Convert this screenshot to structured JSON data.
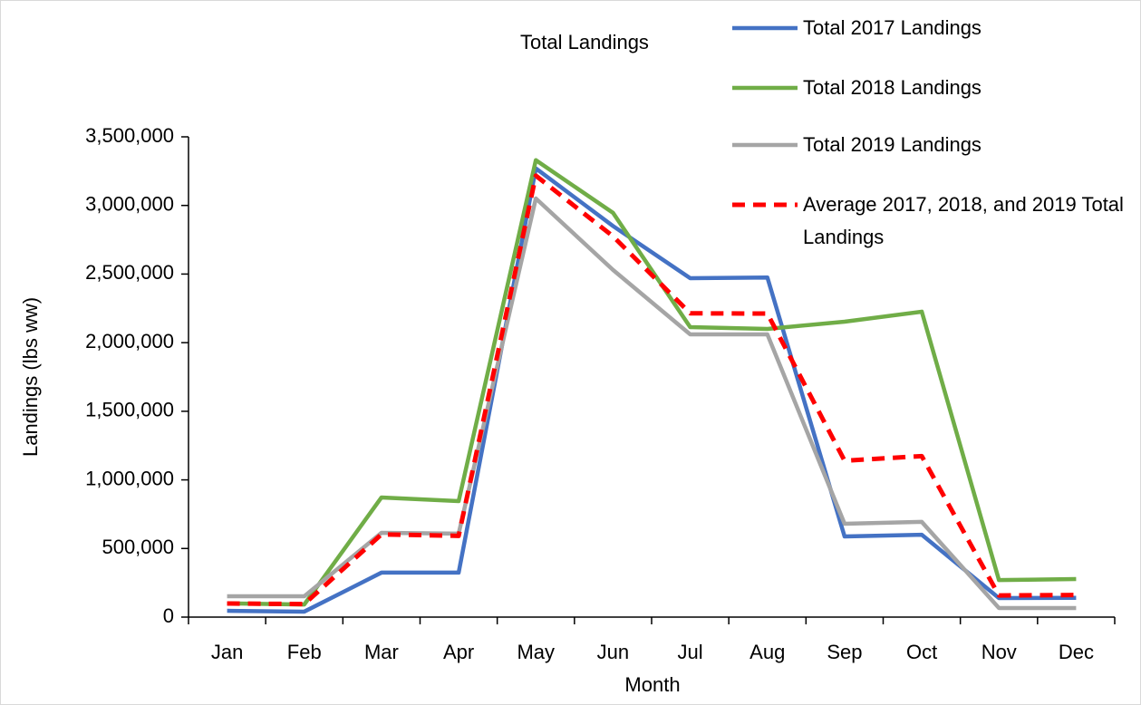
{
  "chart_data": {
    "type": "line",
    "title": "Total Landings",
    "x_label": "Month",
    "y_label": "Landings (lbs ww)",
    "categories": [
      "Jan",
      "Feb",
      "Mar",
      "Apr",
      "May",
      "Jun",
      "Jul",
      "Aug",
      "Sep",
      "Oct",
      "Nov",
      "Dec"
    ],
    "series": [
      {
        "name": "Total 2017 Landings",
        "color": "#4472c4",
        "dash": false,
        "values": [
          46000,
          40000,
          324000,
          324000,
          3270000,
          2850000,
          2470000,
          2475000,
          588000,
          600000,
          139000,
          140000
        ]
      },
      {
        "name": "Total 2018 Landings",
        "color": "#70ad47",
        "dash": false,
        "values": [
          100000,
          92000,
          872000,
          845000,
          3330000,
          2946000,
          2113000,
          2100000,
          2153000,
          2226000,
          270000,
          277000
        ]
      },
      {
        "name": "Total 2019 Landings",
        "color": "#a5a5a5",
        "dash": false,
        "values": [
          152000,
          152000,
          614000,
          608000,
          3051000,
          2530000,
          2060000,
          2060000,
          680000,
          694000,
          66000,
          66000
        ]
      },
      {
        "name": "Average 2017, 2018, and 2019 Total Landings",
        "color": "#ff0000",
        "dash": true,
        "values": [
          99000,
          95000,
          603000,
          592000,
          3217000,
          2775000,
          2214000,
          2212000,
          1140000,
          1173000,
          158000,
          161000
        ]
      }
    ],
    "ylim": [
      0,
      3500000
    ],
    "yticks": [
      0,
      {
        "value": 500000,
        "label": "500,000"
      },
      {
        "value": 1000000,
        "label": "1,000,000"
      },
      {
        "value": 1500000,
        "label": "1,500,000"
      },
      {
        "value": 2000000,
        "label": "2,000,000"
      },
      {
        "value": 2500000,
        "label": "2,500,000"
      },
      {
        "value": 3000000,
        "label": "3,000,000"
      },
      {
        "value": 3500000,
        "label": "3,500,000"
      }
    ],
    "legend": "top-right",
    "grid": false
  }
}
